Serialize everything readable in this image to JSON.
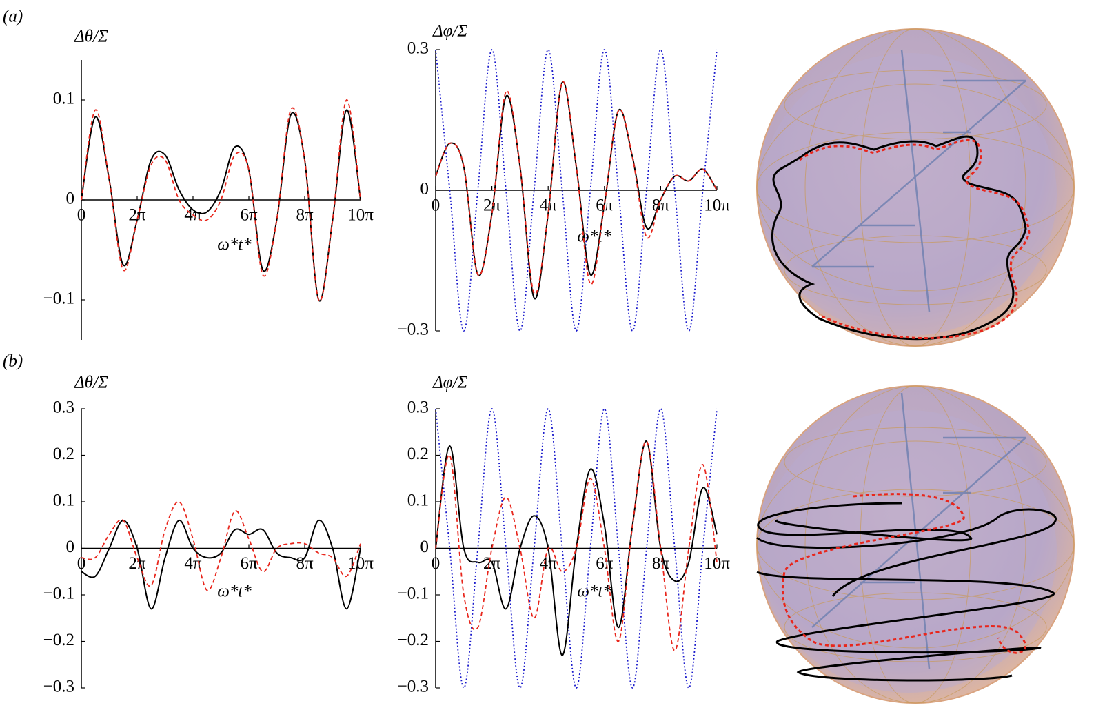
{
  "panel_labels": [
    "(a)",
    "(b)"
  ],
  "chart_data": [
    {
      "type": "line",
      "y_label": "Δθ/Σ",
      "x_label": "ω*t*",
      "x": [
        0,
        1.571,
        3.142,
        4.712,
        6.283,
        7.854,
        9.425,
        10.996,
        12.566,
        14.137,
        15.708,
        17.279,
        18.85,
        20.42,
        21.991,
        23.562,
        25.133,
        26.704,
        28.274,
        29.845,
        31.416
      ],
      "xlim": [
        0,
        31.416
      ],
      "xticks": [
        0,
        {
          "value": 6.283,
          "label": "2π"
        },
        {
          "value": 12.566,
          "label": "4π"
        },
        {
          "value": 18.85,
          "label": "6π"
        },
        {
          "value": 25.133,
          "label": "8π"
        },
        {
          "value": 31.416,
          "label": "10π"
        }
      ],
      "ylim": [
        -0.14,
        0.14
      ],
      "yticks": [
        {
          "value": -0.1,
          "label": "−0.1"
        },
        0,
        0.1
      ],
      "series": [
        {
          "color": "#000000",
          "line_style": "solid",
          "values": [
            0,
            0.083,
            0.02,
            -0.065,
            -0.02,
            0.04,
            0.045,
            0.01,
            -0.01,
            -0.012,
            0.01,
            0.053,
            0.03,
            -0.07,
            -0.02,
            0.085,
            0.04,
            -0.1,
            -0.02,
            0.09,
            0
          ]
        },
        {
          "color": "#e8261c",
          "line_style": "dashed",
          "values": [
            0,
            0.09,
            0.02,
            -0.07,
            -0.02,
            0.035,
            0.04,
            0,
            -0.015,
            -0.02,
            0,
            0.045,
            0.03,
            -0.075,
            -0.02,
            0.09,
            0.04,
            -0.1,
            -0.02,
            0.1,
            0
          ]
        }
      ]
    },
    {
      "type": "line",
      "y_label": "Δφ/Σ",
      "x_label": "ω*t*",
      "x": [
        0,
        1.571,
        3.142,
        4.712,
        6.283,
        7.854,
        9.425,
        10.996,
        12.566,
        14.137,
        15.708,
        17.279,
        18.85,
        20.42,
        21.991,
        23.562,
        25.133,
        26.704,
        28.274,
        29.845,
        31.416
      ],
      "xlim": [
        0,
        31.416
      ],
      "xticks": [
        0,
        {
          "value": 6.283,
          "label": "2π"
        },
        {
          "value": 12.566,
          "label": "4π"
        },
        {
          "value": 18.85,
          "label": "6π"
        },
        {
          "value": 25.133,
          "label": "8π"
        },
        {
          "value": 31.416,
          "label": "10π"
        }
      ],
      "ylim": [
        -0.3,
        0.3
      ],
      "yticks": [
        {
          "value": -0.3,
          "label": "−0.3"
        },
        0,
        0.3
      ],
      "series": [
        {
          "color": "#1a1acc",
          "line_style": "dotted",
          "values": [
            0.3,
            0,
            -0.3,
            0,
            0.3,
            0,
            -0.3,
            0,
            0.3,
            0,
            -0.3,
            0,
            0.3,
            0,
            -0.3,
            0,
            0.3,
            0,
            -0.3,
            0,
            0.3
          ]
        },
        {
          "color": "#000000",
          "line_style": "solid",
          "values": [
            0.03,
            0.1,
            0.05,
            -0.18,
            -0.05,
            0.2,
            0.05,
            -0.23,
            -0.05,
            0.23,
            0.05,
            -0.18,
            -0.03,
            0.17,
            0.07,
            -0.08,
            -0.02,
            0.03,
            0.02,
            0.045,
            0
          ]
        },
        {
          "color": "#e8261c",
          "line_style": "dashed",
          "values": [
            0.03,
            0.1,
            0.05,
            -0.18,
            -0.05,
            0.21,
            0.05,
            -0.22,
            -0.05,
            0.23,
            0.05,
            -0.2,
            -0.03,
            0.17,
            0.07,
            -0.1,
            -0.02,
            0.03,
            0.02,
            0.045,
            0
          ]
        }
      ]
    },
    {
      "type": "line",
      "y_label": "Δθ/Σ",
      "x_label": "ω*t*",
      "x": [
        0,
        1.571,
        3.142,
        4.712,
        6.283,
        7.854,
        9.425,
        10.996,
        12.566,
        14.137,
        15.708,
        17.279,
        18.85,
        20.42,
        21.991,
        23.562,
        25.133,
        26.704,
        28.274,
        29.845,
        31.416
      ],
      "xlim": [
        0,
        31.416
      ],
      "xticks": [
        0,
        {
          "value": 6.283,
          "label": "2π"
        },
        {
          "value": 12.566,
          "label": "4π"
        },
        {
          "value": 18.85,
          "label": "6π"
        },
        {
          "value": 25.133,
          "label": "8π"
        },
        {
          "value": 31.416,
          "label": "10π"
        }
      ],
      "ylim": [
        -0.3,
        0.3
      ],
      "yticks": [
        {
          "value": -0.3,
          "label": "−0.3"
        },
        {
          "value": -0.2,
          "label": "−0.2"
        },
        {
          "value": -0.1,
          "label": "−0.1"
        },
        0,
        0.1,
        0.2,
        0.3
      ],
      "series": [
        {
          "color": "#000000",
          "line_style": "solid",
          "values": [
            -0.05,
            -0.06,
            0,
            0.06,
            0,
            -0.13,
            -0.02,
            0.06,
            0,
            -0.02,
            -0.01,
            0.04,
            0.03,
            0.04,
            -0.01,
            -0.02,
            -0.02,
            0.06,
            0,
            -0.13,
            0
          ]
        },
        {
          "color": "#e8261c",
          "line_style": "dashed",
          "values": [
            -0.02,
            -0.02,
            0.03,
            0.06,
            -0.02,
            -0.08,
            0.04,
            0.1,
            0.02,
            -0.09,
            -0.02,
            0.08,
            0.02,
            -0.05,
            0,
            0.01,
            0.01,
            -0.01,
            -0.02,
            -0.06,
            0.01
          ]
        }
      ]
    },
    {
      "type": "line",
      "y_label": "Δφ/Σ",
      "x_label": "ω*t*",
      "x": [
        0,
        1.571,
        3.142,
        4.712,
        6.283,
        7.854,
        9.425,
        10.996,
        12.566,
        14.137,
        15.708,
        17.279,
        18.85,
        20.42,
        21.991,
        23.562,
        25.133,
        26.704,
        28.274,
        29.845,
        31.416
      ],
      "xlim": [
        0,
        31.416
      ],
      "xticks": [
        0,
        {
          "value": 6.283,
          "label": "2π"
        },
        {
          "value": 12.566,
          "label": "4π"
        },
        {
          "value": 18.85,
          "label": "6π"
        },
        {
          "value": 25.133,
          "label": "8π"
        },
        {
          "value": 31.416,
          "label": "10π"
        }
      ],
      "ylim": [
        -0.3,
        0.3
      ],
      "yticks": [
        {
          "value": -0.3,
          "label": "−0.3"
        },
        {
          "value": -0.2,
          "label": "−0.2"
        },
        {
          "value": -0.1,
          "label": "−0.1"
        },
        0,
        0.1,
        0.2,
        0.3
      ],
      "series": [
        {
          "color": "#1a1acc",
          "line_style": "dotted",
          "values": [
            0.3,
            0,
            -0.3,
            0,
            0.3,
            0,
            -0.3,
            0,
            0.3,
            0,
            -0.3,
            0,
            0.3,
            0,
            -0.3,
            0,
            0.3,
            0,
            -0.3,
            0,
            0.3
          ]
        },
        {
          "color": "#000000",
          "line_style": "solid",
          "values": [
            0,
            0.22,
            0,
            -0.03,
            -0.03,
            -0.13,
            0,
            0.07,
            0,
            -0.23,
            0,
            0.17,
            0.05,
            -0.17,
            0.05,
            0.23,
            0,
            -0.07,
            -0.03,
            0.13,
            0.03
          ]
        },
        {
          "color": "#e8261c",
          "line_style": "dashed",
          "values": [
            0,
            0.2,
            -0.1,
            -0.17,
            0,
            0.11,
            0,
            -0.15,
            0,
            -0.05,
            0,
            0.15,
            0,
            -0.2,
            0.05,
            0.23,
            0,
            -0.22,
            0,
            0.18,
            -0.03
          ]
        }
      ]
    }
  ]
}
